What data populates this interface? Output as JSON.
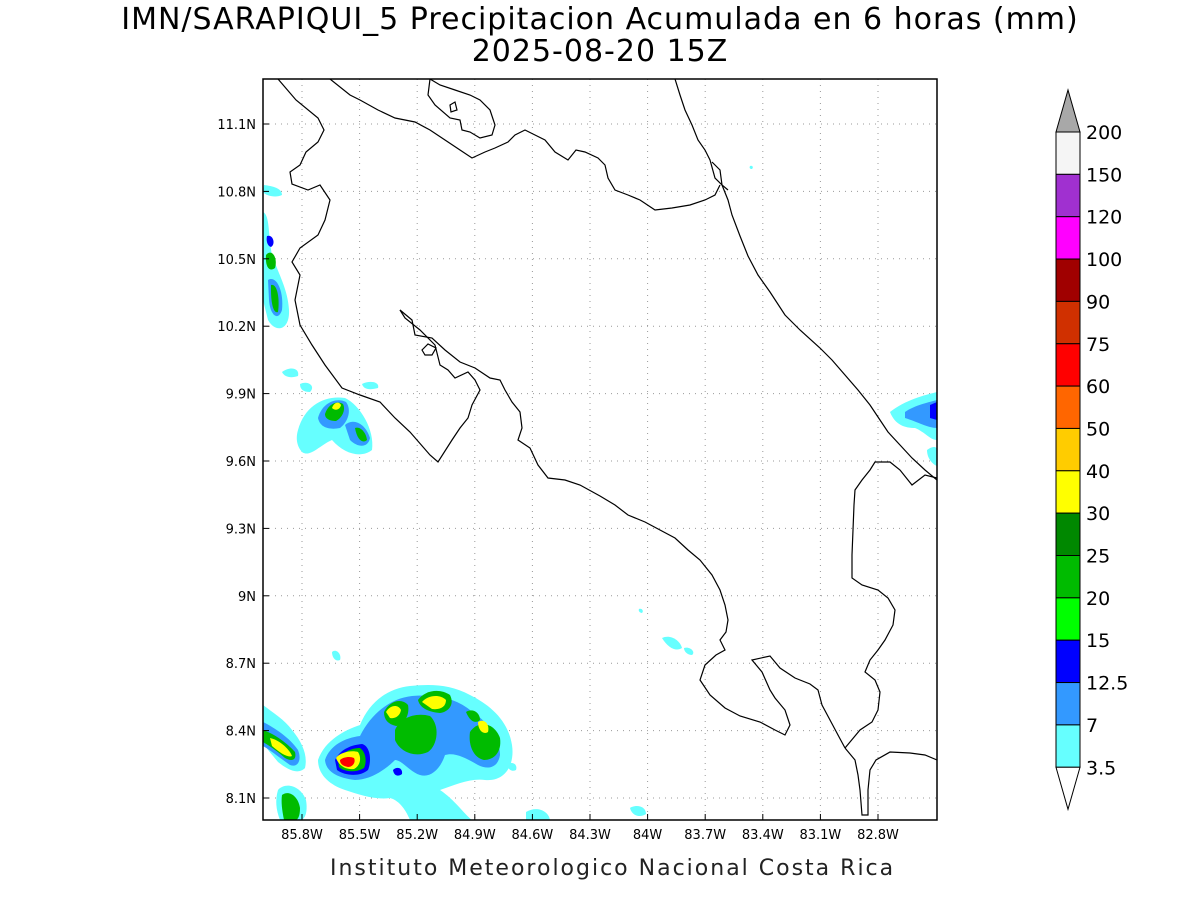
{
  "header": {
    "title": "IMN/SARAPIQUI_5 Precipitacion Acumulada en 6 horas (mm)",
    "subtitle": "2025-08-20 15Z"
  },
  "footer": {
    "credit": "Instituto Meteorologico Nacional Costa Rica"
  },
  "map": {
    "lat_labels": [
      "11.1N",
      "10.8N",
      "10.5N",
      "10.2N",
      "9.9N",
      "9.6N",
      "9.3N",
      "9N",
      "8.7N",
      "8.4N",
      "8.1N"
    ],
    "lon_labels": [
      "85.8W",
      "85.5W",
      "85.2W",
      "84.9W",
      "84.6W",
      "84.3W",
      "84W",
      "83.7W",
      "83.4W",
      "83.1W",
      "82.8W"
    ],
    "grid": "dotted"
  },
  "colorbar": {
    "labels": [
      "200",
      "150",
      "120",
      "100",
      "90",
      "75",
      "60",
      "50",
      "40",
      "30",
      "25",
      "20",
      "15",
      "12.5",
      "7",
      "3.5"
    ],
    "colors": [
      "#f5f5f5",
      "#a030d0",
      "#ff00ff",
      "#a00000",
      "#d03000",
      "#ff0000",
      "#ff6600",
      "#ffcc00",
      "#ffff00",
      "#008800",
      "#00bb00",
      "#00ff00",
      "#0000ff",
      "#3399ff",
      "#66ffff"
    ],
    "top_arrow_color": "#a8a8a8",
    "bottom_arrow_color": "#ffffff"
  }
}
